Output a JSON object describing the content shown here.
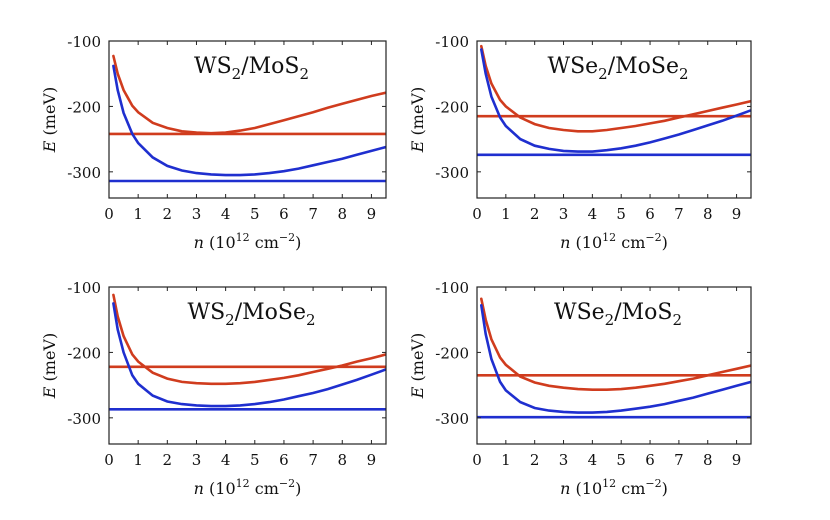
{
  "chart_data": [
    {
      "type": "line",
      "title": "WS2/MoS2",
      "title_parts": [
        "WS",
        "2",
        "/MoS",
        "2"
      ],
      "xlabel": {
        "var": "n",
        "unit_pre": "(10",
        "unit_exp": "12",
        "unit_mid": " cm",
        "unit_exp2": "−2",
        "unit_post": ")"
      },
      "ylabel": {
        "var": "E",
        "unit": " (meV)"
      },
      "xlim": [
        0,
        9.5
      ],
      "ylim": [
        -340,
        -100
      ],
      "xticks": [
        0,
        1,
        2,
        3,
        4,
        5,
        6,
        7,
        8,
        9
      ],
      "yticks": [
        -300,
        -200,
        -100
      ],
      "series": [
        {
          "name": "red-curve",
          "color": "#d03c1e",
          "x": [
            0.15,
            0.3,
            0.5,
            0.8,
            1.0,
            1.5,
            2.0,
            2.5,
            3.0,
            3.5,
            4.0,
            4.5,
            5.0,
            5.5,
            6.0,
            6.5,
            7.0,
            7.5,
            8.0,
            8.5,
            9.0,
            9.5
          ],
          "y": [
            -123,
            -150,
            -175,
            -199,
            -209,
            -225,
            -233,
            -238,
            -240,
            -241,
            -240,
            -237,
            -233,
            -227,
            -221,
            -215,
            -209,
            -202,
            -196,
            -190,
            -184,
            -179
          ]
        },
        {
          "name": "red-flat",
          "color": "#d03c1e",
          "x": [
            0,
            9.5
          ],
          "y": [
            -242,
            -242
          ]
        },
        {
          "name": "blue-curve",
          "color": "#1f2fcf",
          "x": [
            0.15,
            0.3,
            0.5,
            0.8,
            1.0,
            1.5,
            2.0,
            2.5,
            3.0,
            3.5,
            4.0,
            4.5,
            5.0,
            5.5,
            6.0,
            6.5,
            7.0,
            7.5,
            8.0,
            8.5,
            9.0,
            9.5
          ],
          "y": [
            -138,
            -175,
            -210,
            -242,
            -256,
            -278,
            -291,
            -298,
            -302,
            -304,
            -305,
            -305,
            -304,
            -302,
            -299,
            -295,
            -290,
            -285,
            -280,
            -274,
            -268,
            -262
          ]
        },
        {
          "name": "blue-flat",
          "color": "#1f2fcf",
          "x": [
            0,
            9.5
          ],
          "y": [
            -314,
            -314
          ]
        }
      ]
    },
    {
      "type": "line",
      "title": "WSe2/MoSe2",
      "title_parts": [
        "WSe",
        "2",
        "/MoSe",
        "2"
      ],
      "xlabel": {
        "var": "n",
        "unit_pre": "(10",
        "unit_exp": "12",
        "unit_mid": " cm",
        "unit_exp2": "−2",
        "unit_post": ")"
      },
      "ylabel": {
        "var": "E",
        "unit": " (meV)"
      },
      "xlim": [
        0,
        9.5
      ],
      "ylim": [
        -340,
        -100
      ],
      "xticks": [
        0,
        1,
        2,
        3,
        4,
        5,
        6,
        7,
        8,
        9
      ],
      "yticks": [
        -300,
        -200,
        -100
      ],
      "series": [
        {
          "name": "red-curve",
          "color": "#d03c1e",
          "x": [
            0.15,
            0.3,
            0.5,
            0.8,
            1.0,
            1.5,
            2.0,
            2.5,
            3.0,
            3.5,
            4.0,
            4.5,
            5.0,
            5.5,
            6.0,
            6.5,
            7.0,
            7.5,
            8.0,
            8.5,
            9.0,
            9.5
          ],
          "y": [
            -108,
            -138,
            -165,
            -190,
            -200,
            -217,
            -227,
            -233,
            -236,
            -238,
            -238,
            -236,
            -233,
            -230,
            -226,
            -222,
            -217,
            -212,
            -207,
            -202,
            -197,
            -192
          ]
        },
        {
          "name": "red-flat",
          "color": "#d03c1e",
          "x": [
            0,
            9.5
          ],
          "y": [
            -215,
            -215
          ]
        },
        {
          "name": "blue-curve",
          "color": "#1f2fcf",
          "x": [
            0.15,
            0.3,
            0.5,
            0.8,
            1.0,
            1.5,
            2.0,
            2.5,
            3.0,
            3.5,
            4.0,
            4.5,
            5.0,
            5.5,
            6.0,
            6.5,
            7.0,
            7.5,
            8.0,
            8.5,
            9.0,
            9.5
          ],
          "y": [
            -113,
            -150,
            -185,
            -217,
            -230,
            -250,
            -260,
            -265,
            -268,
            -269,
            -269,
            -267,
            -264,
            -260,
            -255,
            -249,
            -243,
            -236,
            -229,
            -222,
            -214,
            -206
          ]
        },
        {
          "name": "blue-flat",
          "color": "#1f2fcf",
          "x": [
            0,
            9.5
          ],
          "y": [
            -274,
            -274
          ]
        }
      ]
    },
    {
      "type": "line",
      "title": "WS2/MoSe2",
      "title_parts": [
        "WS",
        "2",
        "/MoSe",
        "2"
      ],
      "xlabel": {
        "var": "n",
        "unit_pre": "(10",
        "unit_exp": "12",
        "unit_mid": " cm",
        "unit_exp2": "−2",
        "unit_post": ")"
      },
      "ylabel": {
        "var": "E",
        "unit": " (meV)"
      },
      "xlim": [
        0,
        9.5
      ],
      "ylim": [
        -340,
        -100
      ],
      "xticks": [
        0,
        1,
        2,
        3,
        4,
        5,
        6,
        7,
        8,
        9
      ],
      "yticks": [
        -300,
        -200,
        -100
      ],
      "series": [
        {
          "name": "red-curve",
          "color": "#d03c1e",
          "x": [
            0.15,
            0.3,
            0.5,
            0.8,
            1.0,
            1.5,
            2.0,
            2.5,
            3.0,
            3.5,
            4.0,
            4.5,
            5.0,
            5.5,
            6.0,
            6.5,
            7.0,
            7.5,
            8.0,
            8.5,
            9.0,
            9.5
          ],
          "y": [
            -112,
            -145,
            -175,
            -203,
            -214,
            -231,
            -240,
            -245,
            -247,
            -248,
            -248,
            -247,
            -245,
            -242,
            -239,
            -235,
            -230,
            -225,
            -220,
            -214,
            -209,
            -203
          ]
        },
        {
          "name": "red-flat",
          "color": "#d03c1e",
          "x": [
            0,
            9.5
          ],
          "y": [
            -222,
            -222
          ]
        },
        {
          "name": "blue-curve",
          "color": "#1f2fcf",
          "x": [
            0.15,
            0.3,
            0.5,
            0.8,
            1.0,
            1.5,
            2.0,
            2.5,
            3.0,
            3.5,
            4.0,
            4.5,
            5.0,
            5.5,
            6.0,
            6.5,
            7.0,
            7.5,
            8.0,
            8.5,
            9.0,
            9.5
          ],
          "y": [
            -125,
            -165,
            -200,
            -235,
            -248,
            -266,
            -275,
            -279,
            -281,
            -282,
            -282,
            -281,
            -279,
            -276,
            -272,
            -267,
            -262,
            -256,
            -249,
            -242,
            -234,
            -226
          ]
        },
        {
          "name": "blue-flat",
          "color": "#1f2fcf",
          "x": [
            0,
            9.5
          ],
          "y": [
            -287,
            -287
          ]
        }
      ]
    },
    {
      "type": "line",
      "title": "WSe2/MoS2",
      "title_parts": [
        "WSe",
        "2",
        "/MoS",
        "2"
      ],
      "xlabel": {
        "var": "n",
        "unit_pre": "(10",
        "unit_exp": "12",
        "unit_mid": " cm",
        "unit_exp2": "−2",
        "unit_post": ")"
      },
      "ylabel": {
        "var": "E",
        "unit": " (meV)"
      },
      "xlim": [
        0,
        9.5
      ],
      "ylim": [
        -340,
        -100
      ],
      "xticks": [
        0,
        1,
        2,
        3,
        4,
        5,
        6,
        7,
        8,
        9
      ],
      "yticks": [
        -300,
        -200,
        -100
      ],
      "series": [
        {
          "name": "red-curve",
          "color": "#d03c1e",
          "x": [
            0.15,
            0.3,
            0.5,
            0.8,
            1.0,
            1.5,
            2.0,
            2.5,
            3.0,
            3.5,
            4.0,
            4.5,
            5.0,
            5.5,
            6.0,
            6.5,
            7.0,
            7.5,
            8.0,
            8.5,
            9.0,
            9.5
          ],
          "y": [
            -118,
            -150,
            -180,
            -208,
            -219,
            -237,
            -246,
            -251,
            -254,
            -256,
            -257,
            -257,
            -256,
            -254,
            -251,
            -248,
            -244,
            -240,
            -235,
            -230,
            -225,
            -220
          ]
        },
        {
          "name": "red-flat",
          "color": "#d03c1e",
          "x": [
            0,
            9.5
          ],
          "y": [
            -235,
            -235
          ]
        },
        {
          "name": "blue-curve",
          "color": "#1f2fcf",
          "x": [
            0.15,
            0.3,
            0.5,
            0.8,
            1.0,
            1.5,
            2.0,
            2.5,
            3.0,
            3.5,
            4.0,
            4.5,
            5.0,
            5.5,
            6.0,
            6.5,
            7.0,
            7.5,
            8.0,
            8.5,
            9.0,
            9.5
          ],
          "y": [
            -128,
            -172,
            -210,
            -245,
            -258,
            -276,
            -285,
            -289,
            -291,
            -292,
            -292,
            -291,
            -289,
            -286,
            -283,
            -279,
            -274,
            -269,
            -263,
            -257,
            -251,
            -245
          ]
        },
        {
          "name": "blue-flat",
          "color": "#1f2fcf",
          "x": [
            0,
            9.5
          ],
          "y": [
            -299,
            -299
          ]
        }
      ]
    }
  ]
}
